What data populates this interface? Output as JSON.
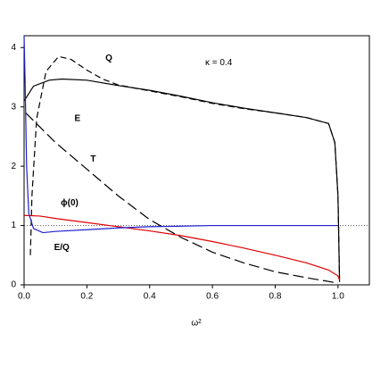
{
  "chart_data": {
    "type": "line",
    "x_label": "ω²",
    "xlim": [
      0,
      1.1
    ],
    "ylim": [
      0,
      4.2
    ],
    "xticks": [
      {
        "value": 0,
        "label": "0.0"
      },
      {
        "value": 0.2,
        "label": "0.2"
      },
      {
        "value": 0.4,
        "label": "0.4"
      },
      {
        "value": 0.6,
        "label": "0.6"
      },
      {
        "value": 0.8,
        "label": "0.8"
      },
      {
        "value": 1,
        "label": "1.0"
      }
    ],
    "yticks": [
      0,
      1,
      2,
      3,
      4
    ],
    "reference_line": 1,
    "annotations": [
      "κ = 0.4"
    ],
    "series": [
      {
        "name": "Q",
        "color": "#000000",
        "style": "dashed",
        "x": [
          0.02,
          0.025,
          0.04,
          0.07,
          0.11,
          0.15,
          0.2,
          0.25,
          0.3,
          0.4,
          0.5,
          0.6,
          0.7,
          0.8,
          0.9,
          0.97,
          0.99,
          1.0,
          1.005
        ],
        "values": [
          0.5,
          1.5,
          2.8,
          3.6,
          3.85,
          3.8,
          3.62,
          3.47,
          3.37,
          3.27,
          3.17,
          3.06,
          2.97,
          2.9,
          2.82,
          2.72,
          2.4,
          1.5,
          0.1
        ]
      },
      {
        "name": "E",
        "color": "#000000",
        "style": "solid",
        "x": [
          0,
          0.03,
          0.08,
          0.12,
          0.2,
          0.3,
          0.4,
          0.5,
          0.6,
          0.7,
          0.8,
          0.9,
          0.97,
          0.99,
          1.0,
          1.005
        ],
        "values": [
          3.1,
          3.35,
          3.45,
          3.47,
          3.45,
          3.36,
          3.28,
          3.18,
          3.07,
          2.98,
          2.9,
          2.82,
          2.72,
          2.4,
          1.5,
          0.05
        ]
      },
      {
        "name": "T",
        "color": "#000000",
        "style": "longdash",
        "x": [
          0.005,
          0.1,
          0.2,
          0.3,
          0.4,
          0.5,
          0.6,
          0.7,
          0.8,
          0.9,
          1.0
        ],
        "values": [
          2.9,
          2.4,
          1.95,
          1.5,
          1.1,
          0.8,
          0.55,
          0.37,
          0.22,
          0.12,
          0.03
        ]
      },
      {
        "name": "ϕ(0)",
        "color": "#e00000",
        "style": "solid",
        "x": [
          0,
          0.05,
          0.1,
          0.2,
          0.3,
          0.4,
          0.5,
          0.6,
          0.7,
          0.8,
          0.9,
          0.97,
          1.0,
          1.005
        ],
        "values": [
          1.17,
          1.16,
          1.12,
          1.05,
          0.98,
          0.91,
          0.83,
          0.73,
          0.62,
          0.5,
          0.37,
          0.25,
          0.15,
          0.08
        ]
      },
      {
        "name": "E/Q",
        "color": "#2020d0",
        "style": "solid",
        "x": [
          0,
          0.003,
          0.008,
          0.015,
          0.03,
          0.06,
          0.1,
          0.2,
          0.3,
          0.4,
          0.5,
          0.6,
          0.8,
          1.0
        ],
        "values": [
          4.2,
          3.5,
          2.0,
          1.2,
          0.95,
          0.88,
          0.9,
          0.93,
          0.96,
          0.98,
          0.99,
          1.0,
          1.0,
          1.0
        ]
      }
    ]
  }
}
